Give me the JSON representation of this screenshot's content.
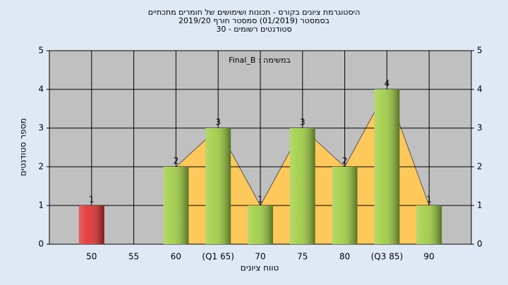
{
  "chart_data": {
    "type": "bar",
    "title": [
      "היסטוגרמת ציונים בקורס - תכונות ושימושים של חומרים מתכתיים",
      "בסמסטר  (01/2019)  סמסטר חורף 2019/20",
      "סטודנטים רשומים - 30"
    ],
    "annotation": "במשימה : Final_B",
    "y_label": "מספר סטודנטים",
    "x_label": "טווח ציונים",
    "categories": [
      "50",
      "55",
      "60",
      "(Q1 65)",
      "70",
      "75",
      "80",
      "(Q3 85)",
      "90"
    ],
    "values": [
      1,
      null,
      2,
      3,
      1,
      3,
      2,
      4,
      1
    ],
    "colors": [
      "#e02a2a",
      null,
      "#9ccc3c",
      "#9ccc3c",
      "#9ccc3c",
      "#9ccc3c",
      "#9ccc3c",
      "#9ccc3c",
      "#9ccc3c"
    ],
    "area_color": "#ffc85a",
    "ylim": [
      0,
      5
    ],
    "yticks": [
      0,
      1,
      2,
      3,
      4,
      5
    ],
    "grid": true
  }
}
